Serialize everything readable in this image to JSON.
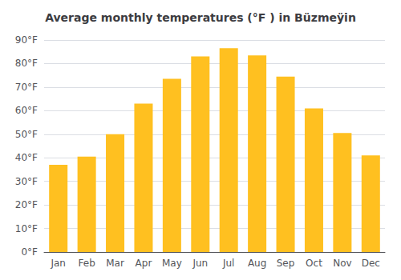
{
  "chart_data": {
    "type": "bar",
    "title": "Average monthly temperatures (°F ) in Büzmeÿin",
    "categories": [
      "Jan",
      "Feb",
      "Mar",
      "Apr",
      "May",
      "Jun",
      "Jul",
      "Aug",
      "Sep",
      "Oct",
      "Nov",
      "Dec"
    ],
    "values": [
      37,
      40.5,
      50,
      63,
      73.5,
      83,
      86.5,
      83.5,
      74.5,
      61,
      50.5,
      41
    ],
    "color": "#FFC020",
    "ylim": [
      0,
      90
    ],
    "yticks": [
      {
        "value": 0,
        "label": "0°F"
      },
      {
        "value": 10,
        "label": "10°F"
      },
      {
        "value": 20,
        "label": "20°F"
      },
      {
        "value": 30,
        "label": "30°F"
      },
      {
        "value": 40,
        "label": "40°F"
      },
      {
        "value": 50,
        "label": "50°F"
      },
      {
        "value": 60,
        "label": "60°F"
      },
      {
        "value": 70,
        "label": "70°F"
      },
      {
        "value": 80,
        "label": "80°F"
      },
      {
        "value": 90,
        "label": "90°F"
      }
    ],
    "grid": true
  }
}
